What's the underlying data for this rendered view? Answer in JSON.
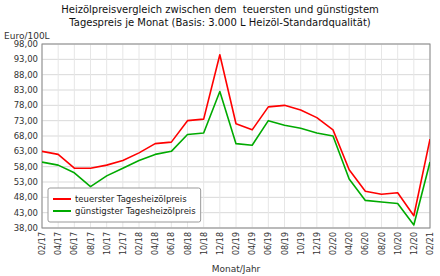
{
  "chart_data": {
    "type": "line",
    "title": "Heizölpreisvergleich zwischen dem  teuersten und günstigstem",
    "subtitle": "Tagespreis je Monat (Basis: 3.000 L Heizöl-Standardqualität)",
    "x_label": "Monat/Jahr",
    "y_label": "Euro/100L",
    "categories": [
      "02/17",
      "04/17",
      "06/17",
      "08/17",
      "10/17",
      "12/17",
      "02/18",
      "04/18",
      "06/18",
      "08/18",
      "10/18",
      "12/18",
      "02/19",
      "04/19",
      "06/19",
      "08/19",
      "10/19",
      "12/19",
      "02/20",
      "04/20",
      "06/20",
      "08/20",
      "10/20",
      "12/20",
      "02/21"
    ],
    "series": [
      {
        "name": "teuerster Tagesheizölpreis",
        "color": "#FF0000",
        "values": [
          63.0,
          62.0,
          57.5,
          57.5,
          58.5,
          60.0,
          62.5,
          65.5,
          66.0,
          73.0,
          73.5,
          94.5,
          72.0,
          70.0,
          77.5,
          78.0,
          76.5,
          74.0,
          70.0,
          57.0,
          50.0,
          49.0,
          49.5,
          42.0,
          67.0
        ]
      },
      {
        "name": "günstigster Tagesheizölpreis",
        "color": "#00AA00",
        "values": [
          59.5,
          58.5,
          56.0,
          51.5,
          55.0,
          57.5,
          60.0,
          62.0,
          63.0,
          68.5,
          69.0,
          82.5,
          65.5,
          65.0,
          73.0,
          71.5,
          70.5,
          69.0,
          68.0,
          54.0,
          47.0,
          46.5,
          46.0,
          39.0,
          59.5
        ]
      }
    ],
    "ylim": [
      38.0,
      98.0
    ],
    "yticks": [
      {
        "value": 38,
        "label": "38,00"
      },
      {
        "value": 43,
        "label": "43,00"
      },
      {
        "value": 48,
        "label": "48,00"
      },
      {
        "value": 53,
        "label": "53,00"
      },
      {
        "value": 58,
        "label": "58,00"
      },
      {
        "value": 63,
        "label": "63,00"
      },
      {
        "value": 68,
        "label": "68,00"
      },
      {
        "value": 73,
        "label": "73,00"
      },
      {
        "value": 78,
        "label": "78,00"
      },
      {
        "value": 83,
        "label": "83,00"
      },
      {
        "value": 88,
        "label": "88,00"
      },
      {
        "value": 93,
        "label": "93,00"
      },
      {
        "value": 98,
        "label": "98,00"
      }
    ],
    "grid": true,
    "legend": "lower left"
  }
}
